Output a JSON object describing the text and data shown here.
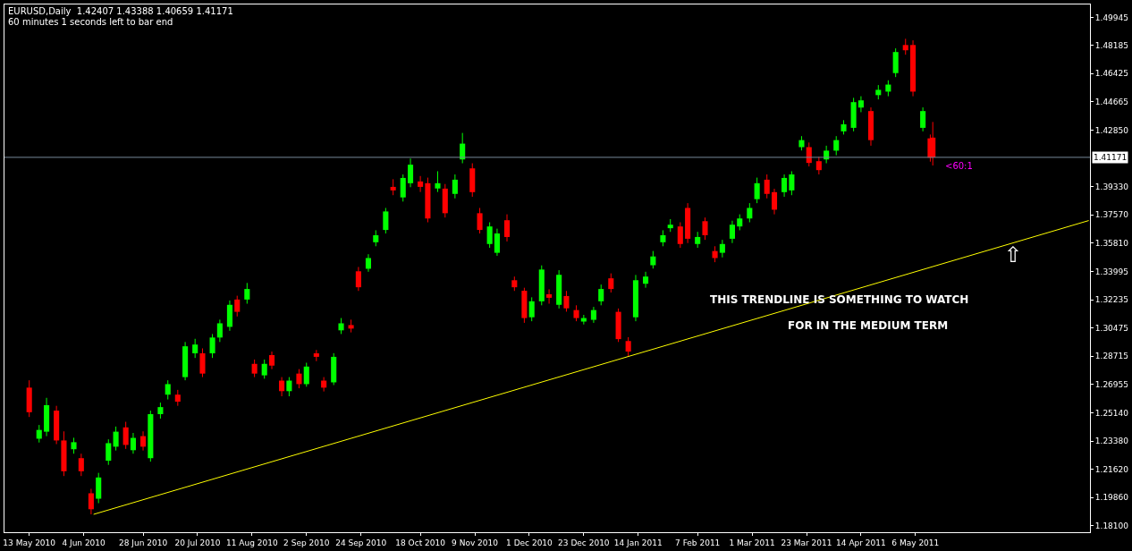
{
  "chart_data": {
    "type": "candlestick",
    "title": "EURUSD,Daily  1.42407 1.43388 1.40659 1.41171",
    "subtitle": "60 minutes 1 seconds left to bar end",
    "annotations": [
      "THIS TRENDLINE IS SOMETHING TO WATCH",
      "FOR IN THE MEDIUM TERM",
      {
        "text": "<60:1",
        "x": "2011-05-13",
        "y": 1.41171
      },
      "⇧"
    ],
    "series": [
      {
        "x": [
          "2010-05-13",
          "2010-05-17",
          "2010-05-20",
          "2010-05-24",
          "2010-05-27",
          "2010-05-31",
          "2010-06-03",
          "2010-06-07",
          "2010-06-10",
          "2010-06-14",
          "2010-06-17",
          "2010-06-21",
          "2010-06-24",
          "2010-06-28",
          "2010-07-01",
          "2010-07-05",
          "2010-07-08",
          "2010-07-12",
          "2010-07-15",
          "2010-07-19",
          "2010-07-22",
          "2010-07-26",
          "2010-07-29",
          "2010-08-02",
          "2010-08-05",
          "2010-08-09",
          "2010-08-12",
          "2010-08-16",
          "2010-08-19",
          "2010-08-23",
          "2010-08-26",
          "2010-08-30",
          "2010-09-02",
          "2010-09-06",
          "2010-09-09",
          "2010-09-13",
          "2010-09-16",
          "2010-09-20",
          "2010-09-23",
          "2010-09-27",
          "2010-09-30",
          "2010-10-04",
          "2010-10-07",
          "2010-10-11",
          "2010-10-14",
          "2010-10-18",
          "2010-10-21",
          "2010-10-25",
          "2010-10-28",
          "2010-11-01",
          "2010-11-04",
          "2010-11-08",
          "2010-11-11",
          "2010-11-15",
          "2010-11-18",
          "2010-11-22",
          "2010-11-25",
          "2010-11-29",
          "2010-12-02",
          "2010-12-06",
          "2010-12-09",
          "2010-12-13",
          "2010-12-16",
          "2010-12-20",
          "2010-12-23",
          "2010-12-27",
          "2010-12-30",
          "2011-01-03",
          "2011-01-06",
          "2011-01-10",
          "2011-01-13",
          "2011-01-17",
          "2011-01-20",
          "2011-01-24",
          "2011-01-27",
          "2011-01-31",
          "2011-02-03",
          "2011-02-07",
          "2011-02-10",
          "2011-02-14",
          "2011-02-17",
          "2011-02-21",
          "2011-02-24",
          "2011-02-28",
          "2011-03-03",
          "2011-03-07",
          "2011-03-10",
          "2011-03-14",
          "2011-03-17",
          "2011-03-21",
          "2011-03-24",
          "2011-03-28",
          "2011-03-31",
          "2011-04-04",
          "2011-04-07",
          "2011-04-11",
          "2011-04-14",
          "2011-04-18",
          "2011-04-21",
          "2011-04-25",
          "2011-04-28",
          "2011-05-02",
          "2011-05-05",
          "2011-05-09",
          "2011-05-12",
          "2011-05-13"
        ],
        "ohlc": [
          [
            1.2674,
            1.272,
            1.249,
            1.252
          ],
          [
            1.2354,
            1.244,
            1.233,
            1.2409
          ],
          [
            1.2398,
            1.261,
            1.237,
            1.2564
          ],
          [
            1.253,
            1.256,
            1.232,
            1.2343
          ],
          [
            1.2343,
            1.24,
            1.212,
            1.215
          ],
          [
            1.2288,
            1.236,
            1.226,
            1.2332
          ],
          [
            1.2232,
            1.226,
            1.212,
            1.215
          ],
          [
            1.2012,
            1.204,
            1.188,
            1.1912
          ],
          [
            1.1978,
            1.214,
            1.195,
            1.2111
          ],
          [
            1.2216,
            1.235,
            1.219,
            1.2326
          ],
          [
            1.2304,
            1.243,
            1.228,
            1.2398
          ],
          [
            1.2425,
            1.246,
            1.229,
            1.2315
          ],
          [
            1.2282,
            1.239,
            1.226,
            1.2359
          ],
          [
            1.237,
            1.24,
            1.228,
            1.2304
          ],
          [
            1.2232,
            1.253,
            1.221,
            1.2508
          ],
          [
            1.2508,
            1.258,
            1.248,
            1.2552
          ],
          [
            1.263,
            1.272,
            1.26,
            1.2696
          ],
          [
            1.263,
            1.266,
            1.256,
            1.2586
          ],
          [
            1.274,
            1.296,
            1.272,
            1.2933
          ],
          [
            1.2889,
            1.298,
            1.286,
            1.2944
          ],
          [
            1.2889,
            1.292,
            1.274,
            1.2762
          ],
          [
            1.2889,
            1.301,
            1.286,
            1.2988
          ],
          [
            1.2988,
            1.31,
            1.296,
            1.3077
          ],
          [
            1.3055,
            1.322,
            1.303,
            1.3193
          ],
          [
            1.3226,
            1.325,
            1.312,
            1.3149
          ],
          [
            1.3226,
            1.333,
            1.32,
            1.3292
          ],
          [
            1.2823,
            1.285,
            1.274,
            1.2762
          ],
          [
            1.2751,
            1.285,
            1.273,
            1.2823
          ],
          [
            1.2878,
            1.29,
            1.279,
            1.2812
          ],
          [
            1.2718,
            1.274,
            1.262,
            1.2652
          ],
          [
            1.2652,
            1.274,
            1.262,
            1.2718
          ],
          [
            1.2762,
            1.279,
            1.267,
            1.2696
          ],
          [
            1.2696,
            1.283,
            1.268,
            1.2806
          ],
          [
            1.2889,
            1.291,
            1.284,
            1.2867
          ],
          [
            1.2718,
            1.274,
            1.265,
            1.2674
          ],
          [
            1.2707,
            1.289,
            1.269,
            1.2867
          ],
          [
            1.3033,
            1.311,
            1.301,
            1.3077
          ],
          [
            1.3066,
            1.31,
            1.302,
            1.3044
          ],
          [
            1.3403,
            1.343,
            1.328,
            1.3303
          ],
          [
            1.3419,
            1.351,
            1.34,
            1.3486
          ],
          [
            1.3585,
            1.366,
            1.356,
            1.3629
          ],
          [
            1.3662,
            1.38,
            1.364,
            1.3778
          ],
          [
            1.3932,
            1.398,
            1.388,
            1.391
          ],
          [
            1.3866,
            1.401,
            1.384,
            1.3988
          ],
          [
            1.3955,
            1.411,
            1.393,
            1.4071
          ],
          [
            1.3966,
            1.4,
            1.39,
            1.3932
          ],
          [
            1.3955,
            1.399,
            1.371,
            1.3734
          ],
          [
            1.3922,
            1.403,
            1.39,
            1.3955
          ],
          [
            1.3921,
            1.395,
            1.374,
            1.3767
          ],
          [
            1.3888,
            1.401,
            1.386,
            1.3977
          ],
          [
            1.4104,
            1.427,
            1.408,
            1.4203
          ],
          [
            1.4048,
            1.408,
            1.387,
            1.3899
          ],
          [
            1.3767,
            1.38,
            1.364,
            1.3662
          ],
          [
            1.3574,
            1.371,
            1.355,
            1.3684
          ],
          [
            1.3519,
            1.367,
            1.35,
            1.364
          ],
          [
            1.3723,
            1.376,
            1.359,
            1.3618
          ],
          [
            1.3347,
            1.337,
            1.328,
            1.3303
          ],
          [
            1.3281,
            1.33,
            1.308,
            1.311
          ],
          [
            1.3115,
            1.324,
            1.309,
            1.3215
          ],
          [
            1.3215,
            1.344,
            1.319,
            1.3414
          ],
          [
            1.3259,
            1.329,
            1.32,
            1.3237
          ],
          [
            1.3193,
            1.341,
            1.317,
            1.3381
          ],
          [
            1.3248,
            1.328,
            1.315,
            1.3171
          ],
          [
            1.316,
            1.319,
            1.309,
            1.311
          ],
          [
            1.3088,
            1.313,
            1.307,
            1.311
          ],
          [
            1.3099,
            1.318,
            1.308,
            1.316
          ],
          [
            1.3215,
            1.332,
            1.319,
            1.3292
          ],
          [
            1.3359,
            1.339,
            1.327,
            1.3292
          ],
          [
            1.3149,
            1.317,
            1.296,
            1.2978
          ],
          [
            1.2966,
            1.299,
            1.287,
            1.29
          ],
          [
            1.3115,
            1.338,
            1.309,
            1.3347
          ],
          [
            1.3325,
            1.34,
            1.33,
            1.337
          ],
          [
            1.3441,
            1.353,
            1.342,
            1.3496
          ],
          [
            1.3585,
            1.366,
            1.356,
            1.3629
          ],
          [
            1.3673,
            1.373,
            1.365,
            1.3695
          ],
          [
            1.3684,
            1.371,
            1.355,
            1.3574
          ],
          [
            1.38,
            1.383,
            1.358,
            1.3607
          ],
          [
            1.3574,
            1.365,
            1.355,
            1.3618
          ],
          [
            1.3717,
            1.374,
            1.36,
            1.3629
          ],
          [
            1.353,
            1.356,
            1.346,
            1.3486
          ],
          [
            1.3519,
            1.36,
            1.349,
            1.3574
          ],
          [
            1.3607,
            1.372,
            1.358,
            1.3695
          ],
          [
            1.3684,
            1.376,
            1.366,
            1.3734
          ],
          [
            1.3734,
            1.383,
            1.371,
            1.38
          ],
          [
            1.3855,
            1.399,
            1.383,
            1.3955
          ],
          [
            1.3977,
            1.401,
            1.386,
            1.3888
          ],
          [
            1.3899,
            1.392,
            1.376,
            1.3789
          ],
          [
            1.3899,
            1.401,
            1.387,
            1.3988
          ],
          [
            1.391,
            1.403,
            1.388,
            1.401
          ],
          [
            1.4181,
            1.425,
            1.416,
            1.4225
          ],
          [
            1.4181,
            1.421,
            1.406,
            1.4082
          ],
          [
            1.4093,
            1.412,
            1.401,
            1.4037
          ],
          [
            1.4104,
            1.419,
            1.408,
            1.4159
          ],
          [
            1.4159,
            1.425,
            1.413,
            1.4225
          ],
          [
            1.428,
            1.435,
            1.426,
            1.4324
          ],
          [
            1.4302,
            1.449,
            1.428,
            1.4463
          ],
          [
            1.4429,
            1.45,
            1.44,
            1.4474
          ],
          [
            1.4407,
            1.443,
            1.419,
            1.4225
          ],
          [
            1.4507,
            1.457,
            1.448,
            1.454
          ],
          [
            1.4529,
            1.46,
            1.45,
            1.4573
          ],
          [
            1.4645,
            1.48,
            1.462,
            1.4777
          ],
          [
            1.4821,
            1.486,
            1.476,
            1.4788
          ],
          [
            1.4821,
            1.485,
            1.45,
            1.4529
          ],
          [
            1.4302,
            1.443,
            1.428,
            1.4407
          ],
          [
            1.4236,
            1.426,
            1.409,
            1.4115
          ],
          [
            1.42407,
            1.43388,
            1.40659,
            1.41171
          ]
        ],
        "colors": [
          "#ff0000",
          "#00ff00",
          "#00ff00",
          "#ff0000",
          "#ff0000",
          "#00ff00",
          "#ff0000",
          "#ff0000",
          "#00ff00",
          "#00ff00",
          "#00ff00",
          "#ff0000",
          "#00ff00",
          "#ff0000",
          "#00ff00",
          "#00ff00",
          "#00ff00",
          "#ff0000",
          "#00ff00",
          "#00ff00",
          "#ff0000",
          "#00ff00",
          "#00ff00",
          "#00ff00",
          "#ff0000",
          "#00ff00",
          "#ff0000",
          "#00ff00",
          "#ff0000",
          "#ff0000",
          "#00ff00",
          "#ff0000",
          "#00ff00",
          "#ff0000",
          "#ff0000",
          "#00ff00",
          "#00ff00",
          "#ff0000",
          "#ff0000",
          "#00ff00",
          "#00ff00",
          "#00ff00",
          "#ff0000",
          "#00ff00",
          "#00ff00",
          "#ff0000",
          "#ff0000",
          "#00ff00",
          "#ff0000",
          "#00ff00",
          "#00ff00",
          "#ff0000",
          "#ff0000",
          "#00ff00",
          "#00ff00",
          "#ff0000",
          "#ff0000",
          "#ff0000",
          "#00ff00",
          "#00ff00",
          "#ff0000",
          "#00ff00",
          "#ff0000",
          "#ff0000",
          "#00ff00",
          "#00ff00",
          "#00ff00",
          "#ff0000",
          "#ff0000",
          "#ff0000",
          "#00ff00",
          "#00ff00",
          "#00ff00",
          "#00ff00",
          "#00ff00",
          "#ff0000",
          "#ff0000",
          "#00ff00",
          "#ff0000",
          "#ff0000",
          "#00ff00",
          "#00ff00",
          "#00ff00",
          "#00ff00",
          "#00ff00",
          "#ff0000",
          "#ff0000",
          "#00ff00",
          "#00ff00",
          "#00ff00",
          "#ff0000",
          "#ff0000",
          "#00ff00",
          "#00ff00",
          "#00ff00",
          "#00ff00",
          "#00ff00",
          "#ff0000",
          "#00ff00",
          "#00ff00",
          "#00ff00",
          "#ff0000",
          "#ff0000",
          "#00ff00",
          "#ff0000",
          "#ff0000"
        ]
      },
      {
        "type": "line",
        "x": [
          "2010-06-08",
          "2011-07-15"
        ],
        "values": [
          1.188,
          1.3721
        ],
        "color": "#ffff00"
      }
    ],
    "ref_lines": [
      {
        "axis": "y",
        "value": 1.41171,
        "label": "1.41171",
        "color": "#778899"
      }
    ],
    "xlim": [
      "2010-05-03",
      "2011-07-15T12:00"
    ],
    "xticks": [
      {
        "value": "2010-05-13",
        "label": "13 May 2010"
      },
      {
        "value": "2010-06-04",
        "label": "4 Jun 2010"
      },
      {
        "value": "2010-06-28",
        "label": "28 Jun 2010"
      },
      {
        "value": "2010-07-20",
        "label": "20 Jul 2010"
      },
      {
        "value": "2010-08-11",
        "label": "11 Aug 2010"
      },
      {
        "value": "2010-09-02",
        "label": "2 Sep 2010"
      },
      {
        "value": "2010-09-24",
        "label": "24 Sep 2010"
      },
      {
        "value": "2010-10-18",
        "label": "18 Oct 2010"
      },
      {
        "value": "2010-11-09",
        "label": "9 Nov 2010"
      },
      {
        "value": "2010-12-01",
        "label": "1 Dec 2010"
      },
      {
        "value": "2010-12-23",
        "label": "23 Dec 2010"
      },
      {
        "value": "2011-01-14",
        "label": "14 Jan 2011"
      },
      {
        "value": "2011-02-07",
        "label": "7 Feb 2011"
      },
      {
        "value": "2011-03-01",
        "label": "1 Mar 2011"
      },
      {
        "value": "2011-03-23",
        "label": "23 Mar 2011"
      },
      {
        "value": "2011-04-14",
        "label": "14 Apr 2011"
      },
      {
        "value": "2011-05-06",
        "label": "6 May 2011"
      }
    ],
    "ylim": [
      1.1768,
      1.5075
    ],
    "yticks": [
      {
        "value": 1.181,
        "label": "1.18100"
      },
      {
        "value": 1.1986,
        "label": "1.19860"
      },
      {
        "value": 1.2162,
        "label": "1.21620"
      },
      {
        "value": 1.2338,
        "label": "1.23380"
      },
      {
        "value": 1.2514,
        "label": "1.25140"
      },
      1.26955,
      1.28715,
      1.30475,
      1.32235,
      1.33995,
      {
        "value": 1.3581,
        "label": "1.35810"
      },
      {
        "value": 1.3757,
        "label": "1.37570"
      },
      {
        "value": 1.3933,
        "label": "1.39330"
      },
      {
        "value": 1.4285,
        "label": "1.42850"
      },
      1.44665,
      1.46425,
      1.48185,
      1.49945
    ],
    "xlabel": null
  }
}
